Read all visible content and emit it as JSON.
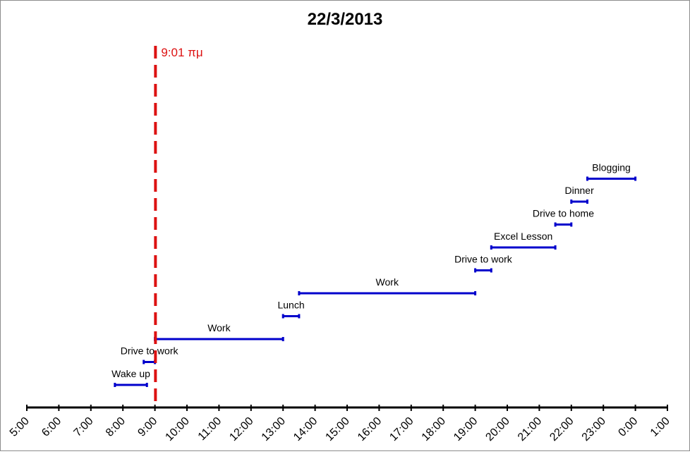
{
  "chart_data": {
    "type": "timeline",
    "title": "22/3/2013",
    "x_unit": "hours",
    "xlim": [
      5,
      25
    ],
    "tick_labels": [
      "5:00",
      "6:00",
      "7:00",
      "8:00",
      "9:00",
      "10:00",
      "11:00",
      "12:00",
      "13:00",
      "14:00",
      "15:00",
      "16:00",
      "17:00",
      "18:00",
      "19:00",
      "20:00",
      "21:00",
      "22:00",
      "23:00",
      "0:00",
      "1:00"
    ],
    "events": [
      {
        "label": "Wake up",
        "start": 7.75,
        "end": 8.75
      },
      {
        "label": "Drive to work",
        "start": 8.65,
        "end": 9.0
      },
      {
        "label": "Work",
        "start": 9.0,
        "end": 13.0
      },
      {
        "label": "Lunch",
        "start": 13.0,
        "end": 13.5
      },
      {
        "label": "Work",
        "start": 13.5,
        "end": 19.0
      },
      {
        "label": "Drive to work",
        "start": 19.0,
        "end": 19.5
      },
      {
        "label": "Excel Lesson",
        "start": 19.5,
        "end": 21.5
      },
      {
        "label": "Drive to home",
        "start": 21.5,
        "end": 22.0
      },
      {
        "label": "Dinner",
        "start": 22.0,
        "end": 22.5
      },
      {
        "label": "Blogging",
        "start": 22.5,
        "end": 24.0
      }
    ],
    "marker": {
      "time": 9.0167,
      "label": "9:01 πμ"
    },
    "colors": {
      "bar": "#0000cc",
      "marker": "#dd1111",
      "axis": "#000000",
      "text": "#000000"
    }
  }
}
